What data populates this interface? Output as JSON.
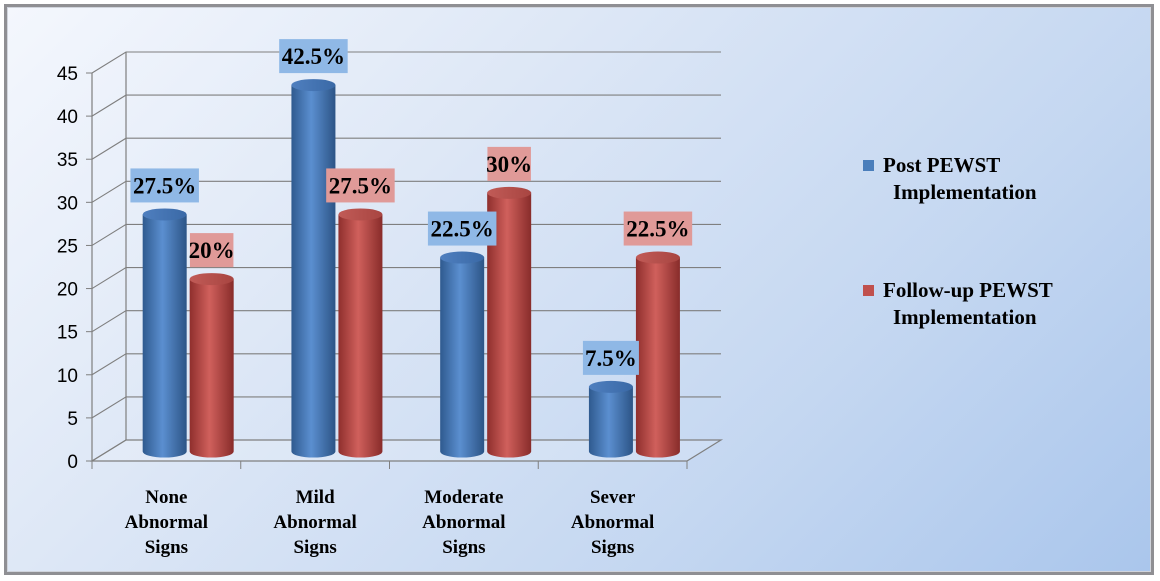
{
  "chart_data": {
    "type": "bar",
    "categories": [
      [
        "None",
        "Abnormal",
        "Signs"
      ],
      [
        "Mild",
        "Abnormal",
        "Signs"
      ],
      [
        "Moderate",
        "Abnormal",
        "Signs"
      ],
      [
        "Sever",
        "Abnormal",
        "Signs"
      ]
    ],
    "series": [
      {
        "name": "Post PEWST Implementation",
        "legend_lines": [
          "Post PEWST",
          "Implementation"
        ],
        "values": [
          27.5,
          42.5,
          22.5,
          7.5
        ],
        "labels": [
          "27.5%",
          "42.5%",
          "22.5%",
          "7.5%"
        ],
        "color": "#4a7ebb",
        "label_bg": "#8fb8e6"
      },
      {
        "name": "Follow-up PEWST Implementation",
        "legend_lines": [
          "Follow-up PEWST",
          "Implementation"
        ],
        "values": [
          20,
          27.5,
          30,
          22.5
        ],
        "labels": [
          "20%",
          "27.5%",
          "30%",
          "22.5%"
        ],
        "color": "#c0504d",
        "label_bg": "#e09a98"
      }
    ],
    "ylim": [
      0,
      45
    ],
    "yticks": [
      "0",
      "5",
      "10",
      "15",
      "20",
      "25",
      "30",
      "35",
      "40",
      "45"
    ],
    "grid": true,
    "legend_position": "right",
    "title": "",
    "xlabel": "",
    "ylabel": ""
  }
}
